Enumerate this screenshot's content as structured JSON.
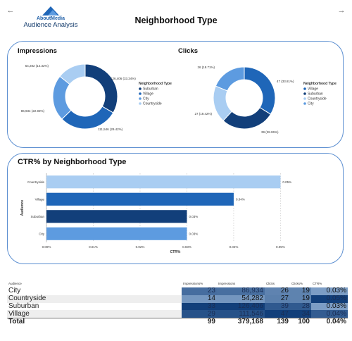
{
  "header": {
    "title": "Neighborhood Type",
    "logo_line1": "AboutMedia",
    "logo_line2": "Audience Analysis"
  },
  "nav": {
    "back_icon": "arrow-left-icon",
    "forward_icon": "arrow-right-icon"
  },
  "impressions": {
    "title": "Impressions",
    "legend_title": "Neighborhood Type",
    "legend": [
      "Suburban",
      "Village",
      "City",
      "Countryside"
    ],
    "slices": [
      {
        "name": "Suburban",
        "value": 126406,
        "label": "126,406 (33.34%)"
      },
      {
        "name": "Village",
        "value": 111546,
        "label": "111,546 (29.42%)"
      },
      {
        "name": "City",
        "value": 86934,
        "label": "86,934 (22.93%)"
      },
      {
        "name": "Countryside",
        "value": 54282,
        "label": "54,282 (14.32%)"
      }
    ]
  },
  "clicks": {
    "title": "Clicks",
    "legend_title": "Neighborhood Type",
    "legend": [
      "Village",
      "Suburban",
      "Countryside",
      "City"
    ],
    "slices": [
      {
        "name": "Village",
        "value": 47,
        "label": "47 (33.81%)"
      },
      {
        "name": "Suburban",
        "value": 39,
        "label": "39 (28.06%)"
      },
      {
        "name": "Countryside",
        "value": 27,
        "label": "27 (19.42%)"
      },
      {
        "name": "City",
        "value": 26,
        "label": "26 (18.71%)"
      }
    ]
  },
  "colors": {
    "Suburban": "#123f7a",
    "Village": "#1f66b8",
    "City": "#5d9be0",
    "Countryside": "#a9cdf2"
  },
  "chart_data": {
    "type": "bar",
    "title": "CTR% by Neighborhood Type",
    "xlabel": "CTR%",
    "ylabel": "Audience",
    "categories": [
      "Countryside",
      "Village",
      "Suburban",
      "City"
    ],
    "values": [
      0.05,
      0.04,
      0.03,
      0.03
    ],
    "value_labels": [
      "0.05%",
      "0.04%",
      "0.03%",
      "0.03%"
    ],
    "xticks": [
      "0.00%",
      "0.01%",
      "0.02%",
      "0.03%",
      "0.04%",
      "0.05%"
    ],
    "xlim": [
      0,
      0.0555
    ],
    "grid": true
  },
  "table": {
    "headers": [
      "Audience",
      "Impressions%",
      "Impressions",
      "Clicks",
      "Clicks%",
      "CTR%"
    ],
    "rows": [
      {
        "audience": "City",
        "impr_pct": "23",
        "impressions": "86,934",
        "clicks": "26",
        "clicks_pct": "19",
        "ctr": "0.03%"
      },
      {
        "audience": "Countryside",
        "impr_pct": "14",
        "impressions": "54,282",
        "clicks": "27",
        "clicks_pct": "19",
        "ctr": "0.05%"
      },
      {
        "audience": "Suburban",
        "impr_pct": "33",
        "impressions": "126,406",
        "clicks": "39",
        "clicks_pct": "28",
        "ctr": "0.03%"
      },
      {
        "audience": "Village",
        "impr_pct": "29",
        "impressions": "111,546",
        "clicks": "47",
        "clicks_pct": "34",
        "ctr": "0.04%"
      }
    ],
    "total": {
      "label": "Total",
      "impr_pct": "99",
      "impressions": "379,168",
      "clicks": "139",
      "clicks_pct": "100",
      "ctr": "0.04%"
    }
  }
}
